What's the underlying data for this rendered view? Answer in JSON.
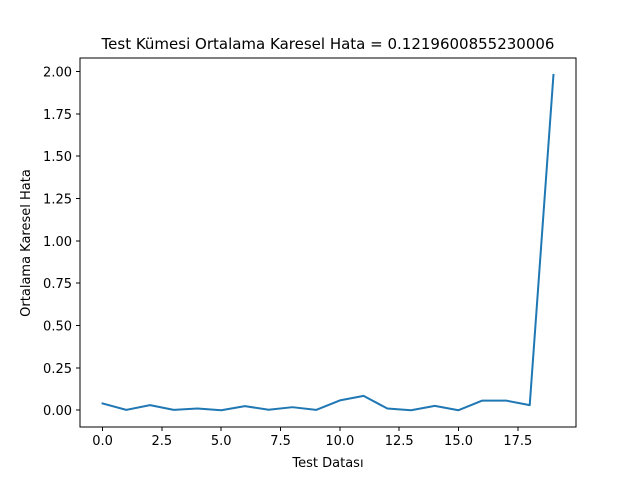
{
  "chart_data": {
    "type": "line",
    "title": "Test Kümesi Ortalama Karesel Hata = 0.1219600855230006",
    "xlabel": "Test Datası",
    "ylabel": "Ortalama Karesel Hata",
    "xlim": [
      -0.95,
      19.95
    ],
    "ylim": [
      -0.099,
      2.08
    ],
    "xticks": [
      0.0,
      2.5,
      5.0,
      7.5,
      10.0,
      12.5,
      15.0,
      17.5
    ],
    "xtick_labels": [
      "0.0",
      "2.5",
      "5.0",
      "7.5",
      "10.0",
      "12.5",
      "15.0",
      "17.5"
    ],
    "yticks": [
      0.0,
      0.25,
      0.5,
      0.75,
      1.0,
      1.25,
      1.5,
      1.75,
      2.0
    ],
    "ytick_labels": [
      "0.00",
      "0.25",
      "0.50",
      "0.75",
      "1.00",
      "1.25",
      "1.50",
      "1.75",
      "2.00"
    ],
    "grid": false,
    "series": [
      {
        "color": "#1f77b4",
        "x": [
          0,
          1,
          2,
          3,
          4,
          5,
          6,
          7,
          8,
          9,
          10,
          11,
          12,
          13,
          14,
          15,
          16,
          17,
          18,
          19
        ],
        "values": [
          0.04,
          0.002,
          0.03,
          0.002,
          0.01,
          0.0,
          0.024,
          0.003,
          0.018,
          0.002,
          0.058,
          0.085,
          0.01,
          0.0,
          0.026,
          0.0,
          0.057,
          0.057,
          0.03,
          1.98
        ]
      }
    ]
  }
}
